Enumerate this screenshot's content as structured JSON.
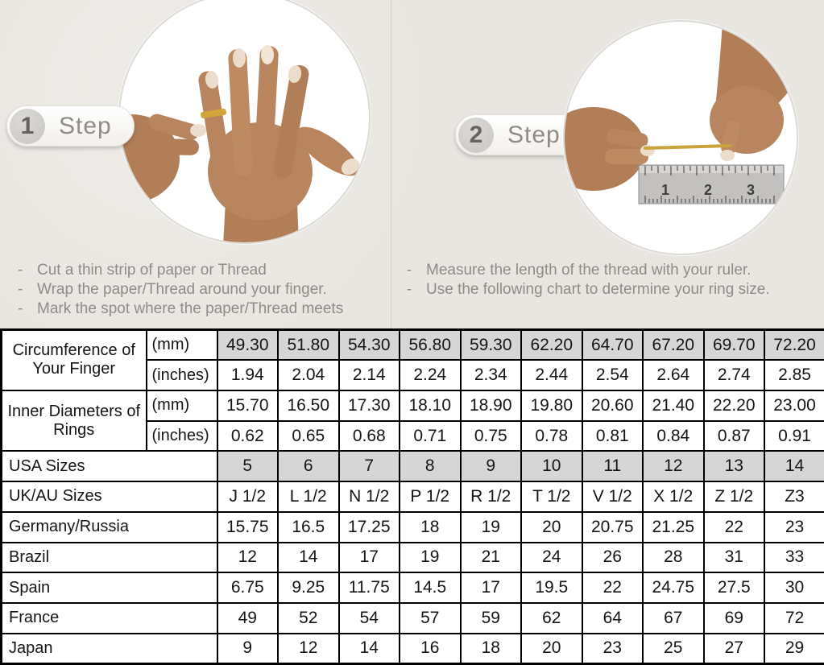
{
  "steps": [
    {
      "number": "1",
      "label": "Step",
      "instructions": [
        "Cut a thin strip of paper or Thread",
        "Wrap the paper/Thread around your finger.",
        "Mark the spot where the paper/Thread meets"
      ]
    },
    {
      "number": "2",
      "label": "Step",
      "instructions": [
        "Measure the length of the thread with your ruler.",
        "Use the following chart to determine your ring size."
      ]
    }
  ],
  "illustrations": {
    "step1": "hand-with-gold-ring-photo",
    "step2": "hands-measuring-thread-with-ruler-photo",
    "ruler_numbers": [
      "1",
      "2",
      "3"
    ]
  },
  "table": {
    "measure_groups": [
      {
        "label": "Circumference of Your Finger",
        "rows": [
          {
            "unit": "(mm)",
            "shaded": true,
            "values": [
              "49.30",
              "51.80",
              "54.30",
              "56.80",
              "59.30",
              "62.20",
              "64.70",
              "67.20",
              "69.70",
              "72.20"
            ]
          },
          {
            "unit": "(inches)",
            "shaded": false,
            "values": [
              "1.94",
              "2.04",
              "2.14",
              "2.24",
              "2.34",
              "2.44",
              "2.54",
              "2.64",
              "2.74",
              "2.85"
            ]
          }
        ]
      },
      {
        "label": "Inner Diameters of Rings",
        "rows": [
          {
            "unit": "(mm)",
            "shaded": false,
            "values": [
              "15.70",
              "16.50",
              "17.30",
              "18.10",
              "18.90",
              "19.80",
              "20.60",
              "21.40",
              "22.20",
              "23.00"
            ]
          },
          {
            "unit": "(inches)",
            "shaded": false,
            "values": [
              "0.62",
              "0.65",
              "0.68",
              "0.71",
              "0.75",
              "0.78",
              "0.81",
              "0.84",
              "0.87",
              "0.91"
            ]
          }
        ]
      }
    ],
    "size_rows": [
      {
        "label": "USA Sizes",
        "shaded": true,
        "values": [
          "5",
          "6",
          "7",
          "8",
          "9",
          "10",
          "11",
          "12",
          "13",
          "14"
        ]
      },
      {
        "label": "UK/AU Sizes",
        "shaded": false,
        "values": [
          "J 1/2",
          "L 1/2",
          "N 1/2",
          "P 1/2",
          "R 1/2",
          "T 1/2",
          "V 1/2",
          "X 1/2",
          "Z 1/2",
          "Z3"
        ]
      },
      {
        "label": "Germany/Russia",
        "shaded": false,
        "values": [
          "15.75",
          "16.5",
          "17.25",
          "18",
          "19",
          "20",
          "20.75",
          "21.25",
          "22",
          "23"
        ]
      },
      {
        "label": "Brazil",
        "shaded": false,
        "values": [
          "12",
          "14",
          "17",
          "19",
          "21",
          "24",
          "26",
          "28",
          "31",
          "33"
        ]
      },
      {
        "label": "Spain",
        "shaded": false,
        "values": [
          "6.75",
          "9.25",
          "11.75",
          "14.5",
          "17",
          "19.5",
          "22",
          "24.75",
          "27.5",
          "30"
        ]
      },
      {
        "label": "France",
        "shaded": false,
        "values": [
          "49",
          "52",
          "54",
          "57",
          "59",
          "62",
          "64",
          "67",
          "69",
          "72"
        ]
      },
      {
        "label": "Japan",
        "shaded": false,
        "values": [
          "9",
          "12",
          "14",
          "16",
          "18",
          "20",
          "23",
          "25",
          "27",
          "29"
        ]
      }
    ]
  },
  "colors": {
    "background": "#e9e6e1",
    "shaded_cell": "#d6d6d6",
    "table_border": "#000000",
    "gold_ring_thread": "#c9a33c",
    "skin_tone": "#b9855e",
    "muted_text": "#8f8c88"
  }
}
